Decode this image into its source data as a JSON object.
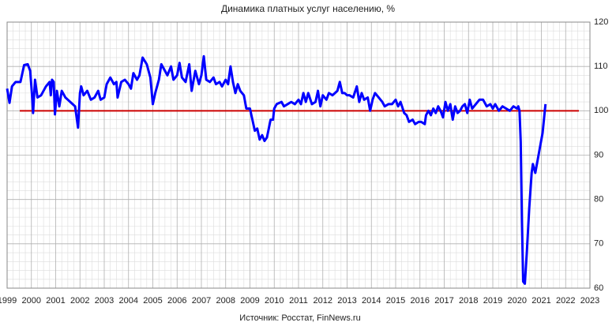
{
  "chart_data": {
    "type": "line",
    "title": "Динамика платных услуг населению, %",
    "source": "Источник: Росстат, FinNews.ru",
    "color": "#0000ff",
    "x": [
      1999.0,
      1999.1,
      1999.2,
      1999.35,
      1999.55,
      1999.7,
      1999.85,
      1999.95,
      2000.02,
      2000.07,
      2000.15,
      2000.25,
      2000.4,
      2000.6,
      2000.75,
      2000.8,
      2000.85,
      2000.92,
      2000.97,
      2001.05,
      2001.15,
      2001.25,
      2001.4,
      2001.6,
      2001.8,
      2001.92,
      2002.0,
      2002.05,
      2002.15,
      2002.3,
      2002.45,
      2002.6,
      2002.75,
      2002.85,
      2003.0,
      2003.1,
      2003.25,
      2003.4,
      2003.5,
      2003.55,
      2003.7,
      2003.85,
      2004.0,
      2004.1,
      2004.2,
      2004.35,
      2004.45,
      2004.58,
      2004.75,
      2004.9,
      2005.0,
      2005.1,
      2005.25,
      2005.35,
      2005.5,
      2005.6,
      2005.75,
      2005.85,
      2006.0,
      2006.1,
      2006.2,
      2006.35,
      2006.5,
      2006.6,
      2006.75,
      2006.9,
      2007.0,
      2007.1,
      2007.2,
      2007.35,
      2007.5,
      2007.6,
      2007.75,
      2007.85,
      2008.0,
      2008.1,
      2008.2,
      2008.3,
      2008.4,
      2008.5,
      2008.6,
      2008.75,
      2008.85,
      2009.0,
      2009.1,
      2009.2,
      2009.3,
      2009.4,
      2009.5,
      2009.6,
      2009.7,
      2009.85,
      2009.95,
      2010.0,
      2010.1,
      2010.3,
      2010.4,
      2010.55,
      2010.7,
      2010.85,
      2011.0,
      2011.1,
      2011.2,
      2011.3,
      2011.4,
      2011.55,
      2011.7,
      2011.8,
      2011.9,
      2012.0,
      2012.15,
      2012.25,
      2012.4,
      2012.5,
      2012.6,
      2012.7,
      2012.8,
      2012.9,
      2013.0,
      2013.1,
      2013.25,
      2013.4,
      2013.5,
      2013.6,
      2013.7,
      2013.85,
      2013.95,
      2014.05,
      2014.15,
      2014.3,
      2014.45,
      2014.55,
      2014.7,
      2014.85,
      2015.0,
      2015.1,
      2015.2,
      2015.35,
      2015.45,
      2015.55,
      2015.7,
      2015.8,
      2015.95,
      2016.05,
      2016.2,
      2016.25,
      2016.35,
      2016.45,
      2016.55,
      2016.65,
      2016.75,
      2016.85,
      2016.95,
      2017.05,
      2017.15,
      2017.25,
      2017.35,
      2017.45,
      2017.55,
      2017.65,
      2017.75,
      2017.85,
      2017.95,
      2018.05,
      2018.15,
      2018.3,
      2018.45,
      2018.6,
      2018.75,
      2018.9,
      2019.0,
      2019.1,
      2019.25,
      2019.4,
      2019.55,
      2019.7,
      2019.85,
      2020.0,
      2020.05,
      2020.1,
      2020.15,
      2020.2,
      2020.25,
      2020.32,
      2020.4,
      2020.5,
      2020.6,
      2020.65,
      2020.75,
      2020.85,
      2020.95,
      2021.05,
      2021.17
    ],
    "values": [
      105,
      101.8,
      105.5,
      106.5,
      106.5,
      110.3,
      110.5,
      109,
      104,
      99.5,
      107,
      103,
      103.5,
      105.5,
      106.5,
      103.5,
      107,
      106.5,
      99.2,
      104.5,
      101,
      104.5,
      103,
      102,
      101,
      96.2,
      104,
      105.5,
      103.5,
      104.5,
      102.5,
      103,
      104.5,
      102.5,
      103,
      106,
      107.5,
      106,
      106.5,
      103,
      106.5,
      107,
      106,
      105,
      108.5,
      107,
      108,
      112,
      110.5,
      107.5,
      101.5,
      104,
      107,
      110.5,
      109,
      108,
      110,
      107,
      108,
      110.8,
      107.5,
      106.5,
      110.5,
      104.5,
      109,
      106,
      108,
      112.3,
      107,
      106.5,
      107.5,
      106,
      106.5,
      105.5,
      107,
      106,
      110,
      106.5,
      104,
      106,
      104.5,
      103.5,
      100.5,
      100.5,
      98,
      95.5,
      96,
      93.5,
      94.5,
      93.2,
      94,
      98,
      98,
      100.5,
      101.5,
      102,
      101,
      101.5,
      102,
      101.5,
      102.5,
      101.5,
      104,
      102,
      104,
      101.5,
      102,
      104.5,
      101,
      103.5,
      102.5,
      104,
      103.5,
      104,
      104.5,
      106.5,
      104,
      104,
      103.5,
      103.5,
      103,
      105.5,
      102,
      104,
      102.5,
      103,
      100,
      102.5,
      104,
      103,
      102,
      101,
      101.5,
      101.5,
      102.5,
      101,
      102,
      99.5,
      99,
      97.5,
      98,
      97,
      97.5,
      97.5,
      97,
      99,
      100,
      99,
      100.5,
      99.5,
      101,
      100,
      98.5,
      102,
      100,
      101.5,
      98,
      101,
      99.5,
      100,
      101,
      101.5,
      99.5,
      102.5,
      100.5,
      101.5,
      102.5,
      102.5,
      101,
      101.5,
      100.5,
      101.5,
      100,
      101,
      100.5,
      100,
      101,
      100.5,
      101,
      100,
      93,
      75,
      61.5,
      61,
      68,
      78,
      86,
      88,
      86,
      89,
      92,
      95,
      101.5
    ],
    "reference_line": {
      "value": 100,
      "color": "#cc0000"
    },
    "xlim": [
      1999,
      2023
    ],
    "xticks": [
      1999,
      2000,
      2001,
      2002,
      2003,
      2004,
      2005,
      2006,
      2007,
      2008,
      2009,
      2010,
      2011,
      2012,
      2013,
      2014,
      2015,
      2016,
      2017,
      2018,
      2019,
      2020,
      2021,
      2022,
      2023
    ],
    "ylim": [
      60,
      120
    ],
    "yticks": [
      60,
      70,
      80,
      90,
      100,
      110,
      120
    ],
    "y_axis_side": "right",
    "grid": true,
    "minor_grid": true
  }
}
